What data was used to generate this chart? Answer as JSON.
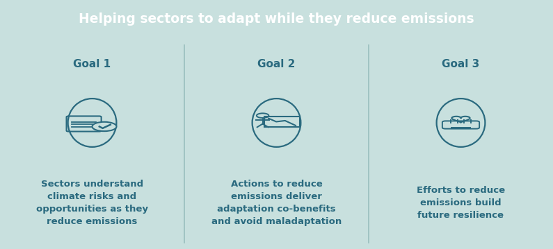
{
  "title": "Helping sectors to adapt while they reduce emissions",
  "title_bg_color": "#2a6a7f",
  "title_text_color": "#ffffff",
  "body_bg_color": "#c8e0de",
  "divider_color": "#9abfbe",
  "goal_label_color": "#2a6a7f",
  "goal_text_color": "#2a6a7f",
  "circle_color": "#2a6a7f",
  "goals": [
    "Goal 1",
    "Goal 2",
    "Goal 3"
  ],
  "descriptions": [
    "Sectors understand\nclimate risks and\nopportunities as they\nreduce emissions",
    "Actions to reduce\nemissions deliver\nadaptation co-benefits\nand avoid maladaptation",
    "Efforts to reduce\nemissions build\nfuture resilience"
  ],
  "icon_symbols": [
    "✓",
    "",
    "❤✋"
  ],
  "fig_width": 7.95,
  "fig_height": 3.59,
  "dpi": 100
}
